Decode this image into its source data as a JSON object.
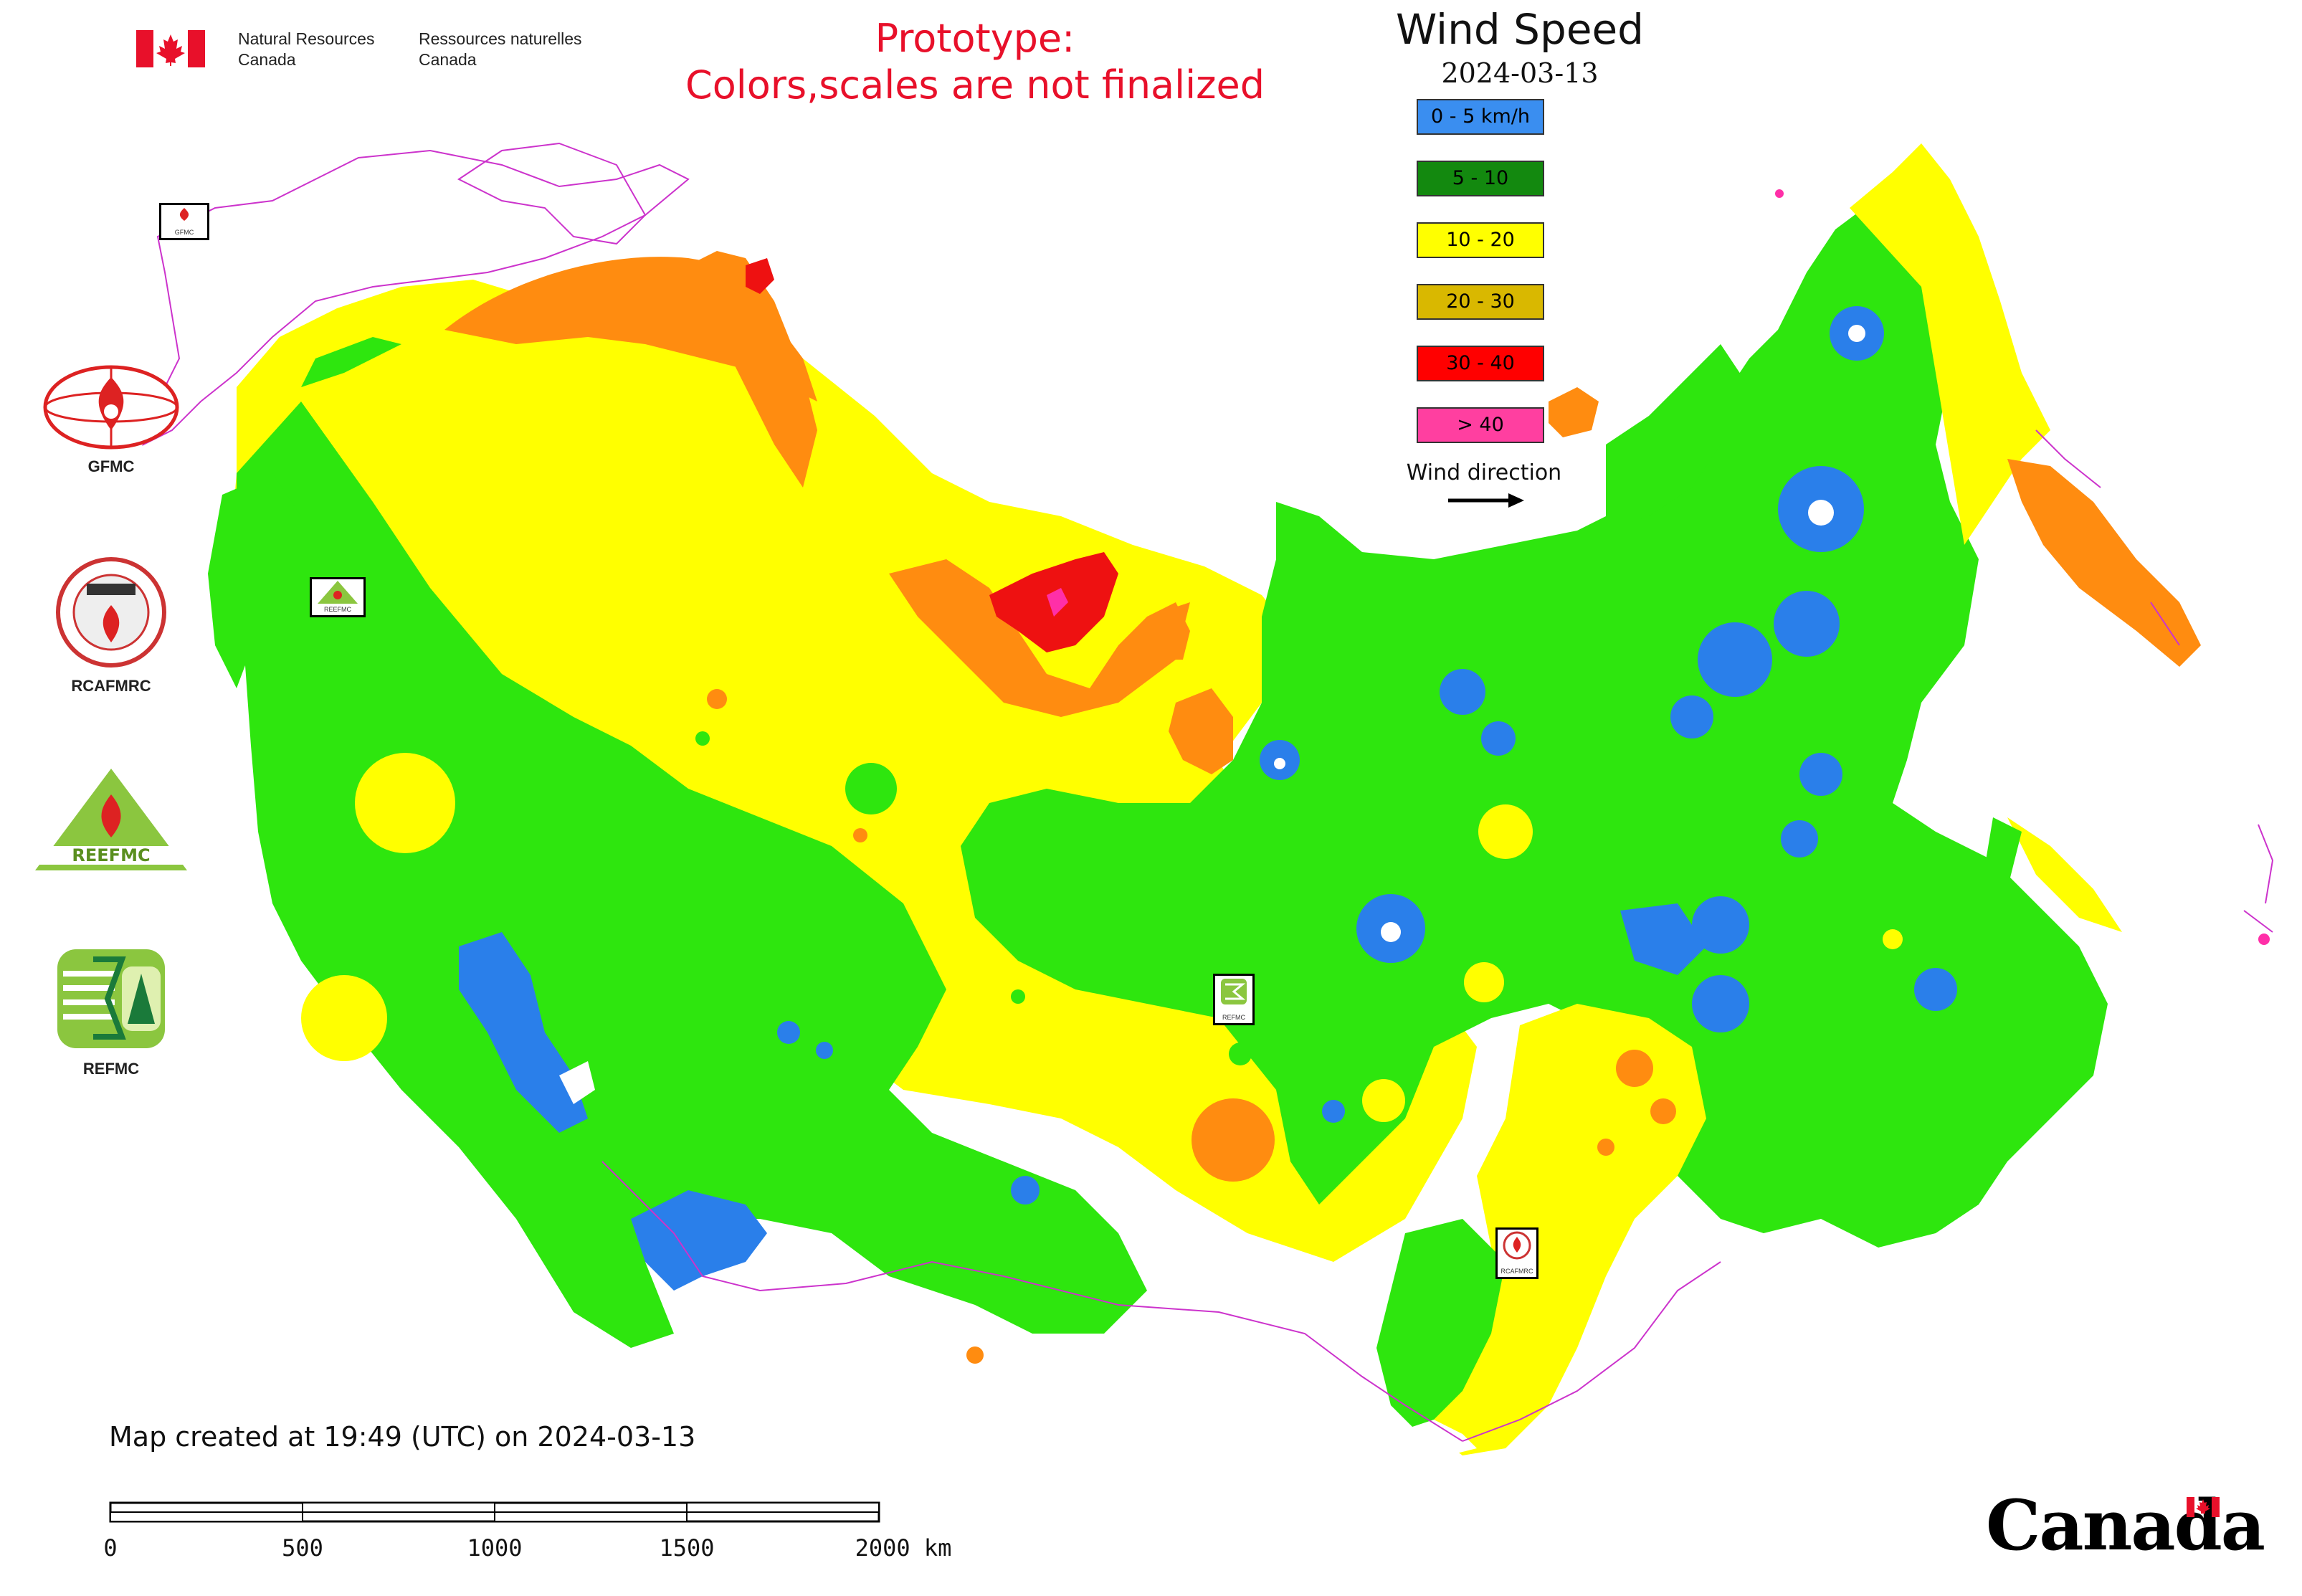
{
  "header": {
    "org_en_line1": "Natural Resources",
    "org_en_line2": "Canada",
    "org_fr_line1": "Ressources naturelles",
    "org_fr_line2": "Canada",
    "prototype_line1": "Prototype:",
    "prototype_line2": "Colors,scales are not finalized"
  },
  "legend": {
    "title": "Wind Speed",
    "date": "2024-03-13",
    "items": [
      {
        "label": "0 - 5 km/h",
        "color": "#3a8ef0"
      },
      {
        "label": "5 - 10",
        "color": "#13890f"
      },
      {
        "label": "10 - 20",
        "color": "#ffff00"
      },
      {
        "label": "20 - 30",
        "color": "#d9b800"
      },
      {
        "label": "30 - 40",
        "color": "#ff0000"
      },
      {
        "label": "> 40",
        "color": "#ff3fa0"
      }
    ],
    "wind_direction_label": "Wind direction"
  },
  "agencies": [
    {
      "label": "GFMC"
    },
    {
      "label": "RCAFMRC"
    },
    {
      "label": "REEFMC"
    },
    {
      "label": "REFMC"
    }
  ],
  "map_markers": [
    {
      "label": "GFMC"
    },
    {
      "label": "REEFMC"
    },
    {
      "label": "REFMC"
    },
    {
      "label": "RCAFMRC"
    }
  ],
  "map_colors": {
    "very_low": "#2a7fea",
    "low": "#2ee60e",
    "moderate": "#ffff00",
    "high": "#ff8c10",
    "very_high": "#ee1111",
    "extreme": "#ff2fa8",
    "border": "#cc33cc"
  },
  "footer": {
    "created_text": "Map created at 19:49 (UTC) on 2024-03-13",
    "scale_ticks": [
      "0",
      "500",
      "1000",
      "1500",
      "2000 km"
    ],
    "logo_text": "Canada"
  }
}
